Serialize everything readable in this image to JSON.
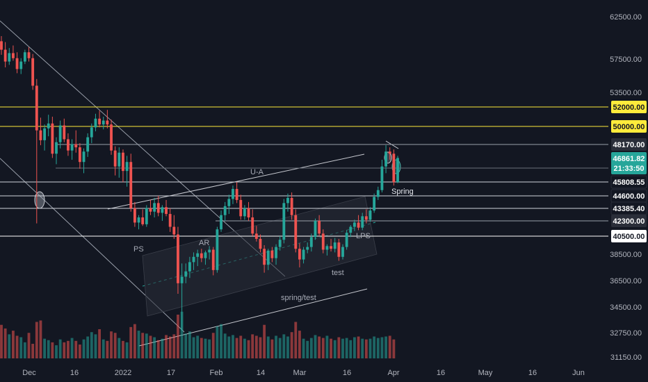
{
  "chart_data": {
    "type": "candlestick",
    "price_ticks": [
      "62500.00",
      "57500.00",
      "53500.00",
      "38500.00",
      "36500.00",
      "34500.00",
      "32750.00",
      "31150.00"
    ],
    "date_ticks": [
      "Dec",
      "16",
      "2022",
      "17",
      "Feb",
      "14",
      "Mar",
      "16",
      "Apr",
      "16",
      "May",
      "16",
      "Jun"
    ],
    "level_tags": [
      {
        "text": "52000.00",
        "bg": "#ffeb3b",
        "fg": "#131722"
      },
      {
        "text": "50000.00",
        "bg": "#ffeb3b",
        "fg": "#131722"
      },
      {
        "text": "48170.00",
        "bg": "#2a2e39",
        "fg": "#ffffff"
      },
      {
        "text": "46861.82",
        "bg": "#26a69a",
        "fg": "#ffffff"
      },
      {
        "text": "21:33:50",
        "bg": "#26a69a",
        "fg": "#ffffff"
      },
      {
        "text": "45808.55",
        "bg": "#131722",
        "fg": "#ffffff"
      },
      {
        "text": "44600.00",
        "bg": "#131722",
        "fg": "#ffffff"
      },
      {
        "text": "43385.40",
        "bg": "#131722",
        "fg": "#ffffff"
      },
      {
        "text": "42300.00",
        "bg": "#2a2e39",
        "fg": "#ffffff"
      },
      {
        "text": "40500.00",
        "bg": "#ffffff",
        "fg": "#131722"
      }
    ],
    "annotations": [
      "U-A",
      "PS",
      "AR",
      "LPS",
      "test",
      "spring/test",
      "Spring"
    ],
    "colors": {
      "up": "#26a69a",
      "down": "#ef5350",
      "background": "#131722",
      "yellow": "#ffeb3b"
    },
    "candles": [
      [
        59600,
        60200,
        58000,
        58600
      ],
      [
        58600,
        59500,
        56500,
        57200
      ],
      [
        57200,
        58800,
        56800,
        58200
      ],
      [
        58200,
        59100,
        57300,
        57600
      ],
      [
        57600,
        58300,
        55800,
        56300
      ],
      [
        56300,
        57600,
        55700,
        57200
      ],
      [
        57200,
        58600,
        56900,
        58300
      ],
      [
        58300,
        58900,
        57200,
        57600
      ],
      [
        57600,
        58100,
        53800,
        54300
      ],
      [
        54300,
        55100,
        42000,
        49600
      ],
      [
        49600,
        50900,
        48100,
        48600
      ],
      [
        48600,
        50200,
        47600,
        49800
      ],
      [
        49800,
        51200,
        49000,
        50300
      ],
      [
        50300,
        51000,
        46900,
        47300
      ],
      [
        47300,
        48900,
        46600,
        48400
      ],
      [
        48400,
        50600,
        47800,
        50100
      ],
      [
        50100,
        50800,
        48400,
        48700
      ],
      [
        48700,
        49300,
        47100,
        47600
      ],
      [
        47600,
        48700,
        46800,
        48200
      ],
      [
        48200,
        49600,
        47400,
        47900
      ],
      [
        47900,
        48300,
        46400,
        46700
      ],
      [
        46700,
        47800,
        46200,
        47500
      ],
      [
        47500,
        49300,
        47000,
        48900
      ],
      [
        48900,
        50300,
        48300,
        49900
      ],
      [
        49900,
        51300,
        49500,
        50800
      ],
      [
        50800,
        51600,
        49900,
        50200
      ],
      [
        50200,
        51000,
        49700,
        50600
      ],
      [
        50600,
        51700,
        49800,
        50200
      ],
      [
        50200,
        50700,
        47200,
        47600
      ],
      [
        47600,
        48000,
        46100,
        46500
      ],
      [
        46500,
        47900,
        46000,
        47400
      ],
      [
        47400,
        47700,
        45800,
        46300
      ],
      [
        46300,
        47100,
        45400,
        46700
      ],
      [
        46700,
        47300,
        43100,
        43400
      ],
      [
        43400,
        44000,
        41600,
        42100
      ],
      [
        42100,
        42800,
        41300,
        42600
      ],
      [
        42600,
        43300,
        41700,
        41900
      ],
      [
        41900,
        43700,
        41600,
        43400
      ],
      [
        43400,
        44200,
        42800,
        43100
      ],
      [
        43100,
        44400,
        42600,
        43900
      ],
      [
        43900,
        44600,
        42700,
        43000
      ],
      [
        43000,
        43700,
        42300,
        43500
      ],
      [
        43500,
        44200,
        42700,
        42900
      ],
      [
        42900,
        43400,
        41000,
        41600
      ],
      [
        41600,
        42800,
        40200,
        40700
      ],
      [
        40700,
        41600,
        35500,
        36300
      ],
      [
        36300,
        37800,
        32900,
        36800
      ],
      [
        36800,
        37800,
        36300,
        37200
      ],
      [
        37200,
        38300,
        36700,
        37900
      ],
      [
        37900,
        38700,
        37300,
        38300
      ],
      [
        38300,
        39000,
        37600,
        38600
      ],
      [
        38600,
        39100,
        37900,
        38200
      ],
      [
        38200,
        38900,
        37700,
        38700
      ],
      [
        38700,
        39400,
        38100,
        39000
      ],
      [
        39000,
        39300,
        36900,
        37300
      ],
      [
        37300,
        41600,
        37100,
        41300
      ],
      [
        41300,
        43200,
        41000,
        42800
      ],
      [
        42800,
        44000,
        42300,
        43600
      ],
      [
        43600,
        44700,
        42900,
        44300
      ],
      [
        44300,
        45500,
        43800,
        45200
      ],
      [
        45200,
        45800,
        43900,
        44200
      ],
      [
        44200,
        44700,
        42400,
        42700
      ],
      [
        42700,
        43700,
        42400,
        43400
      ],
      [
        43400,
        44000,
        42300,
        42600
      ],
      [
        42600,
        43300,
        40500,
        40800
      ],
      [
        40800,
        41700,
        39900,
        40200
      ],
      [
        40200,
        40700,
        38700,
        39100
      ],
      [
        39100,
        39500,
        37100,
        37700
      ],
      [
        37700,
        39100,
        37300,
        38900
      ],
      [
        38900,
        39300,
        37900,
        38200
      ],
      [
        38200,
        39600,
        37700,
        39300
      ],
      [
        39300,
        40500,
        38900,
        40100
      ],
      [
        40100,
        44300,
        39700,
        43900
      ],
      [
        43900,
        44800,
        43100,
        44400
      ],
      [
        44400,
        44900,
        42400,
        42800
      ],
      [
        42800,
        43300,
        38700,
        39100
      ],
      [
        39100,
        39700,
        37500,
        38100
      ],
      [
        38100,
        39300,
        37800,
        39000
      ],
      [
        39000,
        39800,
        38600,
        39300
      ],
      [
        39300,
        40800,
        38800,
        40400
      ],
      [
        40400,
        42500,
        40100,
        42300
      ],
      [
        42300,
        42800,
        40500,
        40800
      ],
      [
        40800,
        41300,
        38600,
        39000
      ],
      [
        39000,
        39600,
        38400,
        39400
      ],
      [
        39400,
        40200,
        38800,
        39100
      ],
      [
        39100,
        40300,
        38700,
        39800
      ],
      [
        39800,
        40200,
        38000,
        38300
      ],
      [
        38300,
        39600,
        38100,
        39300
      ],
      [
        39300,
        41200,
        39000,
        40900
      ],
      [
        40900,
        41800,
        40400,
        41600
      ],
      [
        41600,
        42400,
        41100,
        42100
      ],
      [
        42100,
        42800,
        41200,
        41500
      ],
      [
        41500,
        43000,
        41200,
        42700
      ],
      [
        42700,
        43300,
        42000,
        42400
      ],
      [
        42400,
        43500,
        42200,
        43200
      ],
      [
        43200,
        44800,
        43000,
        44500
      ],
      [
        44500,
        45400,
        44200,
        45100
      ],
      [
        45100,
        46800,
        44900,
        46500
      ],
      [
        46500,
        48100,
        46200,
        47500
      ],
      [
        47500,
        47900,
        46800,
        47300
      ],
      [
        47300,
        47700,
        45500,
        45800
      ],
      [
        45800,
        47100,
        45700,
        46900
      ]
    ],
    "volume": [
      0.46,
      0.41,
      0.33,
      0.38,
      0.31,
      0.29,
      0.22,
      0.35,
      0.2,
      0.5,
      0.52,
      0.27,
      0.25,
      0.22,
      0.18,
      0.26,
      0.22,
      0.24,
      0.28,
      0.24,
      0.19,
      0.26,
      0.3,
      0.36,
      0.33,
      0.4,
      0.26,
      0.24,
      0.37,
      0.35,
      0.28,
      0.24,
      0.22,
      0.43,
      0.47,
      0.38,
      0.35,
      0.34,
      0.31,
      0.29,
      0.25,
      0.27,
      0.32,
      0.3,
      0.33,
      0.6,
      0.64,
      0.34,
      0.37,
      0.29,
      0.31,
      0.28,
      0.27,
      0.26,
      0.35,
      0.44,
      0.47,
      0.34,
      0.3,
      0.32,
      0.28,
      0.31,
      0.27,
      0.25,
      0.33,
      0.31,
      0.29,
      0.46,
      0.3,
      0.26,
      0.31,
      0.28,
      0.33,
      0.3,
      0.36,
      0.5,
      0.38,
      0.27,
      0.24,
      0.28,
      0.32,
      0.3,
      0.28,
      0.31,
      0.27,
      0.25,
      0.29,
      0.27,
      0.28,
      0.25,
      0.29,
      0.3,
      0.27,
      0.26,
      0.27,
      0.3,
      0.28,
      0.29,
      0.3,
      0.31,
      0.26
    ]
  }
}
